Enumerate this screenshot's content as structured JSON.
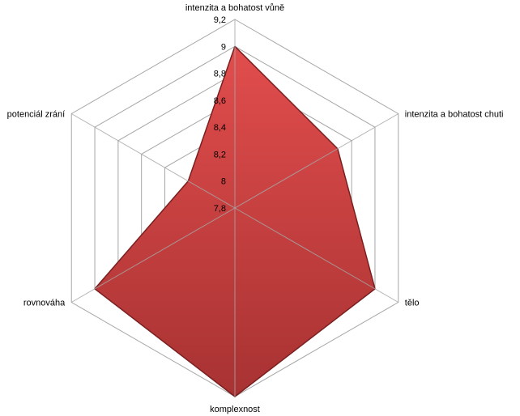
{
  "chart_data": {
    "type": "radar",
    "title": "",
    "axes": [
      "intenzita a bohatost vůně",
      "intenzita a bohatost chuti",
      "tělo",
      "komplexnost",
      "rovnováha",
      "potenciál zrání"
    ],
    "series": [
      {
        "values": [
          9.0,
          8.68,
          9.0,
          9.2,
          9.0,
          8.2
        ]
      }
    ],
    "rlim": [
      7.8,
      9.2
    ],
    "ticks": [
      "7,8",
      "8",
      "8,2",
      "8,4",
      "8,6",
      "8,8",
      "9",
      "9,2"
    ],
    "tick_values": [
      7.8,
      8.0,
      8.2,
      8.4,
      8.6,
      8.8,
      9.0,
      9.2
    ],
    "grid": true,
    "legend": "none",
    "colors": {
      "fill_top": "#e24d4d",
      "fill_bottom": "#a83232",
      "stroke": "#7a1f1f",
      "grid": "#a6a6a6"
    }
  }
}
